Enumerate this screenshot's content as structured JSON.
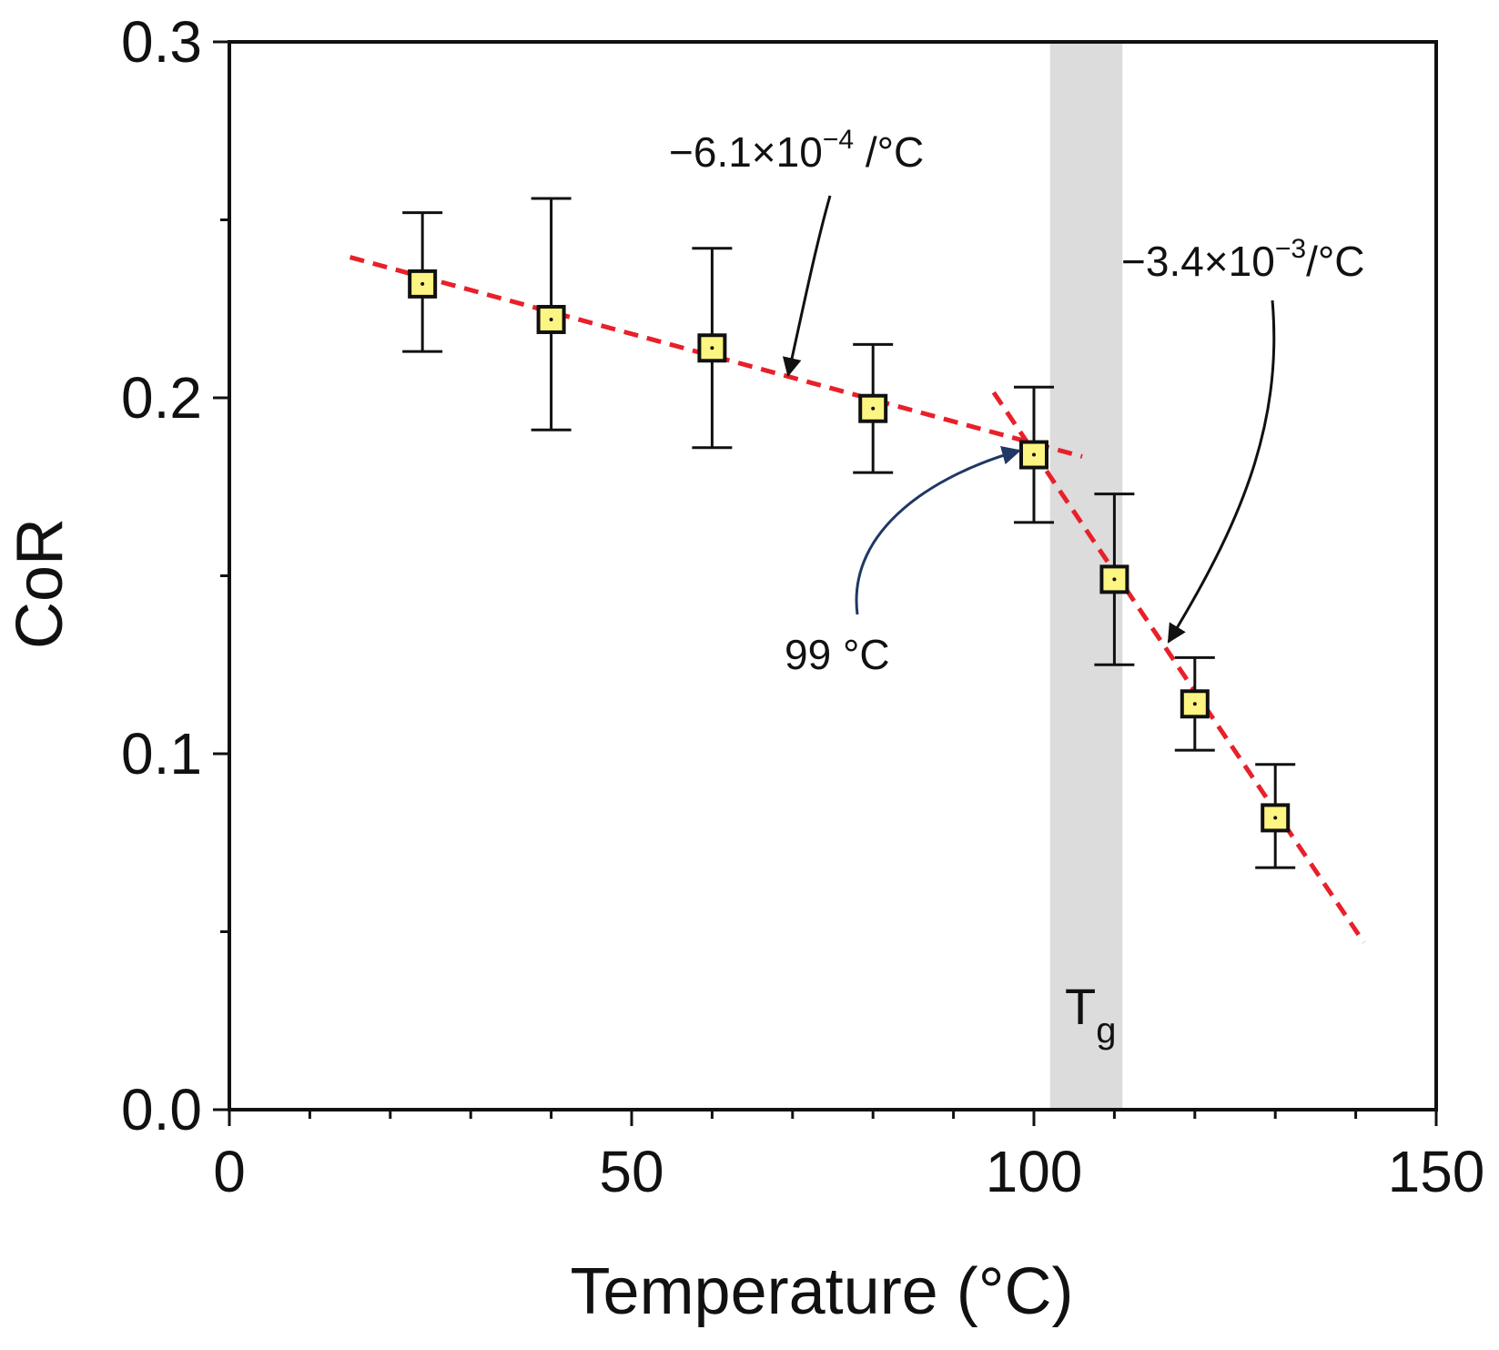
{
  "chart_data": {
    "type": "scatter",
    "title": "",
    "xlabel": "Temperature (°C)",
    "ylabel": "CoR",
    "xlim": [
      0,
      150
    ],
    "ylim": [
      0.0,
      0.3
    ],
    "x_ticks": [
      0,
      50,
      100,
      150
    ],
    "x_tick_labels": [
      "0",
      "50",
      "100",
      "150"
    ],
    "x_minor_step": 10,
    "y_ticks": [
      0.0,
      0.1,
      0.2,
      0.3
    ],
    "y_tick_labels": [
      "0.0",
      "0.1",
      "0.2",
      "0.3"
    ],
    "y_minor_step": 0.05,
    "grid": false,
    "series": [
      {
        "name": "CoR",
        "marker": "square",
        "marker_color": "#fdf582",
        "x": [
          24,
          40,
          60,
          80,
          100,
          110,
          120,
          130
        ],
        "y": [
          0.232,
          0.222,
          0.214,
          0.197,
          0.184,
          0.149,
          0.114,
          0.082
        ],
        "err_low": [
          0.213,
          0.191,
          0.186,
          0.179,
          0.165,
          0.125,
          0.101,
          0.068
        ],
        "err_high": [
          0.252,
          0.256,
          0.242,
          0.215,
          0.203,
          0.173,
          0.127,
          0.097
        ]
      }
    ],
    "fit_lines": [
      {
        "name": "fit-below-tg",
        "slope_label": "−6.1×10",
        "exponent": "−4",
        "unit": " /°C",
        "x": [
          15,
          106
        ],
        "y": [
          0.2395,
          0.1835
        ],
        "color": "#e8202a"
      },
      {
        "name": "fit-above-tg",
        "slope_label": "−3.4×10",
        "exponent": "−3",
        "unit": "/°C",
        "x": [
          95,
          141
        ],
        "y": [
          0.2015,
          0.047
        ],
        "color": "#e8202a"
      }
    ],
    "tg_band": {
      "x_start": 102,
      "x_end": 111,
      "label": "T",
      "label_sub": "g",
      "color": "#dcdcdc"
    },
    "intersection": {
      "label": "99 °C",
      "x": 99
    }
  }
}
